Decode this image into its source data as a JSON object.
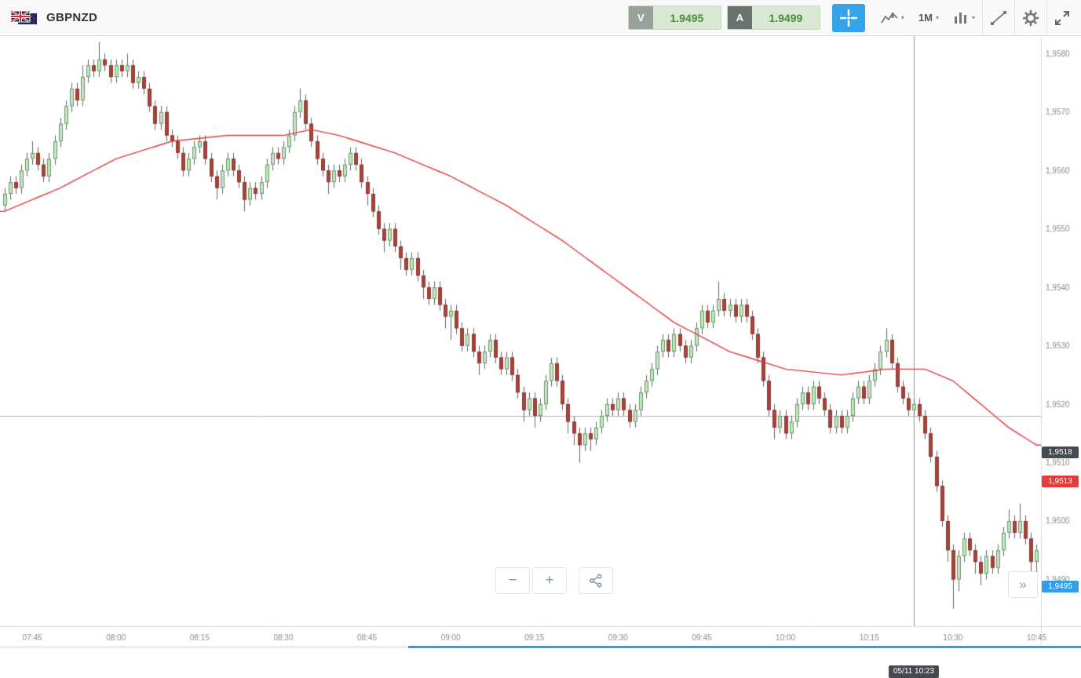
{
  "toolbar": {
    "symbol": "GBPNZD",
    "sell_label": "V",
    "sell_price": "1.9495",
    "buy_label": "A",
    "buy_price": "1.9499",
    "timeframe": "1M"
  },
  "icons": {
    "caret": "▾",
    "zoom_out": "−",
    "zoom_in": "+",
    "collapse": "»"
  },
  "chart_data": {
    "type": "candlestick",
    "symbol": "GBPNZD",
    "interval": "1M",
    "start_time": "07:40",
    "minutes_per_candle": 1,
    "ylim": [
      1.9482,
      1.9583
    ],
    "y_tick_values": [
      1.958,
      1.957,
      1.956,
      1.955,
      1.954,
      1.953,
      1.952,
      1.951,
      1.95,
      1.949
    ],
    "y_tick_labels": [
      "1,9580",
      "1,9570",
      "1,9560",
      "1,9550",
      "1,9540",
      "1,9530",
      "1,9520",
      "1,9510",
      "1,9500",
      "1,9490"
    ],
    "x_tick_indices": [
      5,
      20,
      35,
      50,
      65,
      80,
      95,
      110,
      125,
      140,
      155,
      170,
      185
    ],
    "x_tick_labels": [
      "07:45",
      "08:00",
      "08:15",
      "08:30",
      "08:45",
      "09:00",
      "09:15",
      "09:30",
      "09:45",
      "10:00",
      "10:15",
      "10:30",
      "10:45"
    ],
    "baseline": {
      "value": 1.9518,
      "label": "1,9518"
    },
    "crosshair": {
      "index": 163,
      "time_label": "05/11 10:23"
    },
    "last_price_badge": {
      "value": 1.9495,
      "label": "1,9495",
      "color": "#2f9fe8"
    },
    "ma_badge": {
      "value": 1.9513,
      "label": "1,9513",
      "color": "#e03d3d"
    },
    "colors": {
      "bull_fill": "#cde0cb",
      "bull_border": "#5f9e5c",
      "bear_fill": "#a8433c",
      "bear_border": "#8d372f",
      "wick": "#5f6368",
      "ma_line": "#e23b3b",
      "baseline_line": "#b5b5b5",
      "crosshair_line": "#9a9a9a",
      "axis_text": "#8c8c8c",
      "axis_line": "#dcdcdc"
    },
    "ma": {
      "name": "moving-average",
      "color": "#e23b3b",
      "points": [
        [
          0,
          1.9553
        ],
        [
          10,
          1.9557
        ],
        [
          20,
          1.9562
        ],
        [
          30,
          1.9565
        ],
        [
          40,
          1.9566
        ],
        [
          50,
          1.9566
        ],
        [
          55,
          1.9567
        ],
        [
          60,
          1.9566
        ],
        [
          70,
          1.9563
        ],
        [
          80,
          1.9559
        ],
        [
          90,
          1.9554
        ],
        [
          100,
          1.9548
        ],
        [
          110,
          1.9541
        ],
        [
          120,
          1.9534
        ],
        [
          130,
          1.9529
        ],
        [
          140,
          1.9526
        ],
        [
          150,
          1.9525
        ],
        [
          158,
          1.9526
        ],
        [
          165,
          1.9526
        ],
        [
          170,
          1.9524
        ],
        [
          175,
          1.952
        ],
        [
          180,
          1.9516
        ],
        [
          185,
          1.9513
        ]
      ]
    },
    "candles": [
      [
        1.9554,
        1.9557,
        1.9553,
        1.9556
      ],
      [
        1.9556,
        1.9559,
        1.9555,
        1.9558
      ],
      [
        1.9558,
        1.9559,
        1.9556,
        1.9557
      ],
      [
        1.9557,
        1.9561,
        1.9556,
        1.956
      ],
      [
        1.956,
        1.9563,
        1.9559,
        1.9562
      ],
      [
        1.9562,
        1.9565,
        1.9561,
        1.9563
      ],
      [
        1.9563,
        1.9564,
        1.956,
        1.9561
      ],
      [
        1.9561,
        1.9562,
        1.9558,
        1.9559
      ],
      [
        1.9559,
        1.9563,
        1.9558,
        1.9562
      ],
      [
        1.9562,
        1.9566,
        1.9561,
        1.9565
      ],
      [
        1.9565,
        1.9569,
        1.9564,
        1.9568
      ],
      [
        1.9568,
        1.9572,
        1.9567,
        1.9571
      ],
      [
        1.9571,
        1.9575,
        1.957,
        1.9574
      ],
      [
        1.9574,
        1.9575,
        1.9571,
        1.9572
      ],
      [
        1.9572,
        1.9578,
        1.9571,
        1.9576
      ],
      [
        1.9576,
        1.9579,
        1.9575,
        1.9578
      ],
      [
        1.9578,
        1.9579,
        1.9576,
        1.9577
      ],
      [
        1.9577,
        1.9582,
        1.9576,
        1.9579
      ],
      [
        1.9579,
        1.958,
        1.9577,
        1.9578
      ],
      [
        1.9578,
        1.9579,
        1.9575,
        1.9576
      ],
      [
        1.9576,
        1.9579,
        1.9575,
        1.9578
      ],
      [
        1.9578,
        1.9579,
        1.9576,
        1.9577
      ],
      [
        1.9577,
        1.958,
        1.9576,
        1.9578
      ],
      [
        1.9578,
        1.9579,
        1.9574,
        1.9575
      ],
      [
        1.9575,
        1.9577,
        1.9574,
        1.9576
      ],
      [
        1.9576,
        1.9577,
        1.9573,
        1.9574
      ],
      [
        1.9574,
        1.9575,
        1.957,
        1.9571
      ],
      [
        1.9571,
        1.9572,
        1.9567,
        1.9568
      ],
      [
        1.9568,
        1.9571,
        1.9567,
        1.957
      ],
      [
        1.957,
        1.9571,
        1.9565,
        1.9566
      ],
      [
        1.9566,
        1.9567,
        1.9564,
        1.9565
      ],
      [
        1.9565,
        1.9566,
        1.9562,
        1.9563
      ],
      [
        1.9563,
        1.9564,
        1.9559,
        1.956
      ],
      [
        1.956,
        1.9563,
        1.9559,
        1.9562
      ],
      [
        1.9562,
        1.9565,
        1.9561,
        1.9564
      ],
      [
        1.9564,
        1.9566,
        1.9563,
        1.9565
      ],
      [
        1.9565,
        1.9566,
        1.9561,
        1.9562
      ],
      [
        1.9562,
        1.9563,
        1.9558,
        1.9559
      ],
      [
        1.9559,
        1.956,
        1.9555,
        1.9557
      ],
      [
        1.9557,
        1.9561,
        1.9556,
        1.956
      ],
      [
        1.956,
        1.9563,
        1.9559,
        1.9562
      ],
      [
        1.9562,
        1.9563,
        1.9559,
        1.956
      ],
      [
        1.956,
        1.9561,
        1.9557,
        1.9558
      ],
      [
        1.9558,
        1.9559,
        1.9553,
        1.9555
      ],
      [
        1.9555,
        1.9558,
        1.9554,
        1.9557
      ],
      [
        1.9557,
        1.9558,
        1.9555,
        1.9556
      ],
      [
        1.9556,
        1.9559,
        1.9555,
        1.9558
      ],
      [
        1.9558,
        1.9562,
        1.9557,
        1.9561
      ],
      [
        1.9561,
        1.9564,
        1.956,
        1.9563
      ],
      [
        1.9563,
        1.9564,
        1.9561,
        1.9562
      ],
      [
        1.9562,
        1.9565,
        1.9561,
        1.9564
      ],
      [
        1.9564,
        1.9567,
        1.9563,
        1.9566
      ],
      [
        1.9566,
        1.9571,
        1.9565,
        1.957
      ],
      [
        1.957,
        1.9574,
        1.9569,
        1.9572
      ],
      [
        1.9572,
        1.9573,
        1.9567,
        1.9568
      ],
      [
        1.9568,
        1.9569,
        1.9564,
        1.9565
      ],
      [
        1.9565,
        1.9566,
        1.9561,
        1.9562
      ],
      [
        1.9562,
        1.9563,
        1.9559,
        1.956
      ],
      [
        1.956,
        1.9561,
        1.9556,
        1.9558
      ],
      [
        1.9558,
        1.9561,
        1.9557,
        1.956
      ],
      [
        1.956,
        1.9561,
        1.9558,
        1.9559
      ],
      [
        1.9559,
        1.9562,
        1.9558,
        1.9561
      ],
      [
        1.9561,
        1.9564,
        1.956,
        1.9563
      ],
      [
        1.9563,
        1.9564,
        1.956,
        1.9561
      ],
      [
        1.9561,
        1.9562,
        1.9557,
        1.9558
      ],
      [
        1.9558,
        1.9559,
        1.9554,
        1.9556
      ],
      [
        1.9556,
        1.9557,
        1.9552,
        1.9553
      ],
      [
        1.9553,
        1.9554,
        1.9549,
        1.955
      ],
      [
        1.955,
        1.9551,
        1.9546,
        1.9548
      ],
      [
        1.9548,
        1.9551,
        1.9547,
        1.955
      ],
      [
        1.955,
        1.9551,
        1.9546,
        1.9547
      ],
      [
        1.9547,
        1.9548,
        1.9543,
        1.9545
      ],
      [
        1.9545,
        1.9546,
        1.9542,
        1.9543
      ],
      [
        1.9543,
        1.9546,
        1.9542,
        1.9545
      ],
      [
        1.9545,
        1.9546,
        1.9541,
        1.9542
      ],
      [
        1.9542,
        1.9543,
        1.9538,
        1.954
      ],
      [
        1.954,
        1.9541,
        1.9537,
        1.9538
      ],
      [
        1.9538,
        1.9541,
        1.9537,
        1.954
      ],
      [
        1.954,
        1.9541,
        1.9536,
        1.9537
      ],
      [
        1.9537,
        1.9538,
        1.9533,
        1.9535
      ],
      [
        1.9535,
        1.9537,
        1.9531,
        1.9536
      ],
      [
        1.9536,
        1.9537,
        1.9532,
        1.9533
      ],
      [
        1.9533,
        1.9534,
        1.9529,
        1.953
      ],
      [
        1.953,
        1.9533,
        1.9529,
        1.9532
      ],
      [
        1.9532,
        1.9533,
        1.9528,
        1.9529
      ],
      [
        1.9529,
        1.953,
        1.9525,
        1.9527
      ],
      [
        1.9527,
        1.953,
        1.9526,
        1.9529
      ],
      [
        1.9529,
        1.9532,
        1.9528,
        1.9531
      ],
      [
        1.9531,
        1.9532,
        1.9527,
        1.9528
      ],
      [
        1.9528,
        1.9529,
        1.9525,
        1.9526
      ],
      [
        1.9526,
        1.9529,
        1.9525,
        1.9528
      ],
      [
        1.9528,
        1.9529,
        1.9524,
        1.9525
      ],
      [
        1.9525,
        1.9526,
        1.9521,
        1.9522
      ],
      [
        1.9522,
        1.9523,
        1.9517,
        1.9519
      ],
      [
        1.9519,
        1.9522,
        1.9518,
        1.9521
      ],
      [
        1.9521,
        1.9522,
        1.9516,
        1.9518
      ],
      [
        1.9518,
        1.9521,
        1.9517,
        1.952
      ],
      [
        1.952,
        1.9525,
        1.9519,
        1.9524
      ],
      [
        1.9524,
        1.9528,
        1.9523,
        1.9527
      ],
      [
        1.9527,
        1.9528,
        1.9523,
        1.9524
      ],
      [
        1.9524,
        1.9525,
        1.9519,
        1.952
      ],
      [
        1.952,
        1.9521,
        1.9515,
        1.9517
      ],
      [
        1.9517,
        1.9518,
        1.9513,
        1.9515
      ],
      [
        1.9515,
        1.9516,
        1.951,
        1.9513
      ],
      [
        1.9513,
        1.9516,
        1.9512,
        1.9515
      ],
      [
        1.9515,
        1.9516,
        1.9512,
        1.9514
      ],
      [
        1.9514,
        1.9517,
        1.9513,
        1.9516
      ],
      [
        1.9516,
        1.9519,
        1.9515,
        1.9518
      ],
      [
        1.9518,
        1.9521,
        1.9517,
        1.952
      ],
      [
        1.952,
        1.9521,
        1.9518,
        1.9519
      ],
      [
        1.9519,
        1.9522,
        1.9518,
        1.9521
      ],
      [
        1.9521,
        1.9522,
        1.9518,
        1.9519
      ],
      [
        1.9519,
        1.952,
        1.9516,
        1.9517
      ],
      [
        1.9517,
        1.952,
        1.9516,
        1.9519
      ],
      [
        1.9519,
        1.9523,
        1.9518,
        1.9522
      ],
      [
        1.9522,
        1.9525,
        1.9521,
        1.9524
      ],
      [
        1.9524,
        1.9527,
        1.9523,
        1.9526
      ],
      [
        1.9526,
        1.953,
        1.9525,
        1.9529
      ],
      [
        1.9529,
        1.9532,
        1.9528,
        1.9531
      ],
      [
        1.9531,
        1.9532,
        1.9528,
        1.9529
      ],
      [
        1.9529,
        1.9533,
        1.9528,
        1.9532
      ],
      [
        1.9532,
        1.9533,
        1.9529,
        1.953
      ],
      [
        1.953,
        1.9531,
        1.9527,
        1.9528
      ],
      [
        1.9528,
        1.9531,
        1.9527,
        1.953
      ],
      [
        1.953,
        1.9534,
        1.9529,
        1.9533
      ],
      [
        1.9533,
        1.9537,
        1.9532,
        1.9536
      ],
      [
        1.9536,
        1.9537,
        1.9533,
        1.9534
      ],
      [
        1.9534,
        1.9537,
        1.9533,
        1.9536
      ],
      [
        1.9536,
        1.9541,
        1.9535,
        1.9538
      ],
      [
        1.9538,
        1.9539,
        1.9535,
        1.9536
      ],
      [
        1.9536,
        1.9538,
        1.9535,
        1.9537
      ],
      [
        1.9537,
        1.9538,
        1.9534,
        1.9535
      ],
      [
        1.9535,
        1.9538,
        1.9534,
        1.9537
      ],
      [
        1.9537,
        1.9538,
        1.9534,
        1.9535
      ],
      [
        1.9535,
        1.9536,
        1.9531,
        1.9532
      ],
      [
        1.9532,
        1.9533,
        1.9527,
        1.9528
      ],
      [
        1.9528,
        1.9529,
        1.9523,
        1.9524
      ],
      [
        1.9524,
        1.9525,
        1.9518,
        1.9519
      ],
      [
        1.9519,
        1.952,
        1.9514,
        1.9516
      ],
      [
        1.9516,
        1.9519,
        1.9515,
        1.9518
      ],
      [
        1.9518,
        1.9519,
        1.9514,
        1.9515
      ],
      [
        1.9515,
        1.9518,
        1.9514,
        1.9517
      ],
      [
        1.9517,
        1.9521,
        1.9516,
        1.952
      ],
      [
        1.952,
        1.9523,
        1.9519,
        1.9522
      ],
      [
        1.9522,
        1.9523,
        1.9519,
        1.952
      ],
      [
        1.952,
        1.9524,
        1.9519,
        1.9523
      ],
      [
        1.9523,
        1.9524,
        1.952,
        1.9521
      ],
      [
        1.9521,
        1.9522,
        1.9518,
        1.9519
      ],
      [
        1.9519,
        1.952,
        1.9515,
        1.9516
      ],
      [
        1.9516,
        1.9519,
        1.9515,
        1.9518
      ],
      [
        1.9518,
        1.9519,
        1.9515,
        1.9516
      ],
      [
        1.9516,
        1.9519,
        1.9515,
        1.9518
      ],
      [
        1.9518,
        1.9522,
        1.9517,
        1.9521
      ],
      [
        1.9521,
        1.9524,
        1.952,
        1.9523
      ],
      [
        1.9523,
        1.9524,
        1.952,
        1.9521
      ],
      [
        1.9521,
        1.9525,
        1.952,
        1.9524
      ],
      [
        1.9524,
        1.9527,
        1.9523,
        1.9526
      ],
      [
        1.9526,
        1.953,
        1.9525,
        1.9529
      ],
      [
        1.9529,
        1.9533,
        1.9528,
        1.9531
      ],
      [
        1.9531,
        1.9532,
        1.9526,
        1.9527
      ],
      [
        1.9527,
        1.9528,
        1.9522,
        1.9523
      ],
      [
        1.9523,
        1.9524,
        1.952,
        1.9521
      ],
      [
        1.9521,
        1.9522,
        1.9518,
        1.9519
      ],
      [
        1.9519,
        1.9521,
        1.9518,
        1.952
      ],
      [
        1.952,
        1.9521,
        1.9517,
        1.9518
      ],
      [
        1.9518,
        1.9519,
        1.9514,
        1.9515
      ],
      [
        1.9515,
        1.9516,
        1.951,
        1.9511
      ],
      [
        1.9511,
        1.9512,
        1.9505,
        1.9506
      ],
      [
        1.9506,
        1.9507,
        1.9499,
        1.95
      ],
      [
        1.95,
        1.9501,
        1.9493,
        1.9495
      ],
      [
        1.9495,
        1.9496,
        1.9485,
        1.949
      ],
      [
        1.949,
        1.9495,
        1.9488,
        1.9494
      ],
      [
        1.9494,
        1.9498,
        1.9493,
        1.9497
      ],
      [
        1.9497,
        1.9498,
        1.9494,
        1.9495
      ],
      [
        1.9495,
        1.9496,
        1.9491,
        1.9493
      ],
      [
        1.9493,
        1.9494,
        1.9489,
        1.9491
      ],
      [
        1.9491,
        1.9495,
        1.949,
        1.9494
      ],
      [
        1.9494,
        1.9495,
        1.9491,
        1.9492
      ],
      [
        1.9492,
        1.9496,
        1.9491,
        1.9495
      ],
      [
        1.9495,
        1.9499,
        1.9494,
        1.9498
      ],
      [
        1.9498,
        1.9502,
        1.9497,
        1.95
      ],
      [
        1.95,
        1.9501,
        1.9497,
        1.9498
      ],
      [
        1.9498,
        1.9503,
        1.9497,
        1.95
      ],
      [
        1.95,
        1.9501,
        1.9496,
        1.9497
      ],
      [
        1.9497,
        1.9498,
        1.949,
        1.9493
      ],
      [
        1.9493,
        1.9496,
        1.9488,
        1.9495
      ]
    ]
  }
}
